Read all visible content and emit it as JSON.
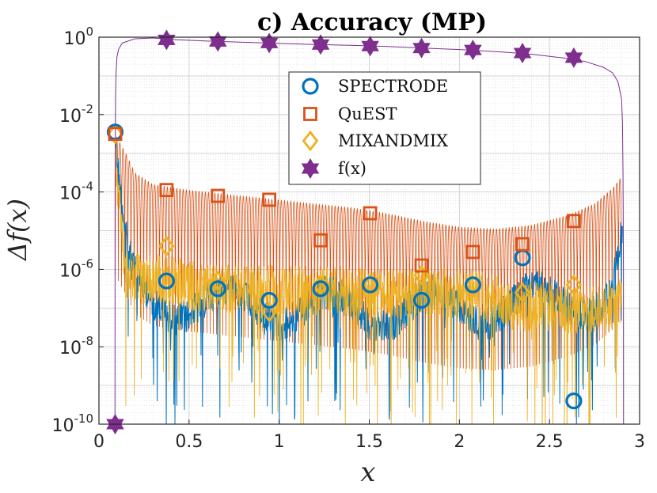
{
  "chart_data": {
    "type": "line",
    "title": "c) Accuracy (MP)",
    "xlabel": "x",
    "ylabel": "Δf(x)",
    "xlim": [
      0,
      3
    ],
    "ylim_log10": [
      -10,
      0
    ],
    "y_scale": "log",
    "grid": true,
    "legend_position": "top-center",
    "x_ticks": [
      0,
      0.5,
      1,
      1.5,
      2,
      2.5,
      3
    ],
    "x_tick_labels": [
      "0",
      "0.5",
      "1",
      "1.5",
      "2",
      "2.5",
      "3"
    ],
    "y_ticks_log10": [
      -10,
      -8,
      -6,
      -4,
      -2,
      0
    ],
    "y_tick_labels": [
      {
        "base": "10",
        "exp": "-10"
      },
      {
        "base": "10",
        "exp": "-8"
      },
      {
        "base": "10",
        "exp": "-6"
      },
      {
        "base": "10",
        "exp": "-4"
      },
      {
        "base": "10",
        "exp": "-2"
      },
      {
        "base": "10",
        "exp": "0"
      }
    ],
    "series": [
      {
        "name": "SPECTRODE",
        "color": "#0072BD",
        "marker": "circle",
        "markers_x": [
          0.09,
          0.375,
          0.66,
          0.945,
          1.23,
          1.505,
          1.79,
          2.075,
          2.35,
          2.635
        ],
        "markers_log10": [
          -2.45,
          -6.3,
          -6.5,
          -6.8,
          -6.5,
          -6.4,
          -6.8,
          -6.4,
          -5.7,
          -9.4
        ],
        "envelope_x": [
          0.09,
          0.12,
          0.16,
          0.2,
          0.3,
          0.5,
          0.7,
          1.0,
          1.3,
          1.6,
          1.9,
          2.2,
          2.5,
          2.7,
          2.82,
          2.88,
          2.905
        ],
        "envelope_log10": [
          -2.6,
          -4.0,
          -5.5,
          -6.0,
          -6.3,
          -6.4,
          -6.5,
          -6.55,
          -6.6,
          -6.6,
          -6.55,
          -6.5,
          -6.4,
          -6.3,
          -6.1,
          -5.5,
          -4.6
        ]
      },
      {
        "name": "QuEST",
        "color": "#D95319",
        "marker": "square",
        "markers_x": [
          0.09,
          0.375,
          0.66,
          0.945,
          1.23,
          1.505,
          1.79,
          2.075,
          2.35,
          2.635
        ],
        "markers_log10": [
          -2.5,
          -3.95,
          -4.1,
          -4.2,
          -5.25,
          -4.55,
          -5.9,
          -5.55,
          -5.35,
          -4.75
        ],
        "envelope_x": [
          0.09,
          0.15,
          0.2,
          0.3,
          0.5,
          0.8,
          1.0,
          1.2,
          1.4,
          1.6,
          1.8,
          2.0,
          2.2,
          2.4,
          2.6,
          2.75,
          2.85,
          2.9
        ],
        "envelope_log10": [
          -2.5,
          -3.0,
          -3.5,
          -3.8,
          -3.95,
          -4.1,
          -4.2,
          -4.3,
          -4.4,
          -4.55,
          -4.75,
          -4.9,
          -4.95,
          -4.85,
          -4.6,
          -4.3,
          -3.9,
          -3.6
        ]
      },
      {
        "name": "MIXANDMIX",
        "color": "#EDB120",
        "marker": "diamond",
        "markers_x": [
          0.09,
          0.375,
          0.66,
          0.945,
          1.23,
          1.505,
          1.79,
          2.075,
          2.35,
          2.635
        ],
        "markers_log10": [
          -2.5,
          -5.4,
          -6.3,
          -7.1,
          -6.4,
          -6.4,
          -6.15,
          -6.4,
          -6.6,
          -6.4
        ],
        "envelope_x": [
          0.09,
          0.15,
          0.25,
          0.4,
          0.6,
          0.8,
          1.0,
          1.3,
          1.6,
          1.9,
          2.1,
          2.3,
          2.5,
          2.7,
          2.85,
          2.9
        ],
        "envelope_log10": [
          -2.5,
          -5.5,
          -5.6,
          -5.6,
          -5.85,
          -5.85,
          -5.9,
          -5.9,
          -5.95,
          -5.95,
          -6.0,
          -6.3,
          -6.35,
          -6.4,
          -6.3,
          -6.2
        ]
      },
      {
        "name": "f(x)",
        "color": "#7E2F8E",
        "marker": "hexagram",
        "markers_x": [
          0.09,
          0.375,
          0.66,
          0.945,
          1.23,
          1.505,
          1.79,
          2.075,
          2.35,
          2.635
        ],
        "markers_log10": [
          -10,
          -0.07,
          -0.11,
          -0.15,
          -0.19,
          -0.23,
          -0.28,
          -0.33,
          -0.41,
          -0.53
        ],
        "curve_x": [
          0.089,
          0.0895,
          0.09,
          0.092,
          0.095,
          0.1,
          0.11,
          0.13,
          0.2,
          0.3,
          0.4,
          0.6,
          0.8,
          1.0,
          1.2,
          1.4,
          1.6,
          1.8,
          2.0,
          2.2,
          2.4,
          2.6,
          2.7,
          2.8,
          2.85,
          2.88,
          2.9,
          2.905,
          2.908,
          2.9105,
          2.911
        ],
        "curve_log10": [
          -10,
          -4,
          -3,
          -1.5,
          -0.9,
          -0.5,
          -0.3,
          -0.15,
          -0.04,
          -0.02,
          -0.06,
          -0.1,
          -0.13,
          -0.16,
          -0.19,
          -0.21,
          -0.24,
          -0.28,
          -0.32,
          -0.37,
          -0.44,
          -0.55,
          -0.63,
          -0.78,
          -0.92,
          -1.15,
          -1.6,
          -2.2,
          -3.5,
          -6,
          -10
        ]
      }
    ]
  }
}
